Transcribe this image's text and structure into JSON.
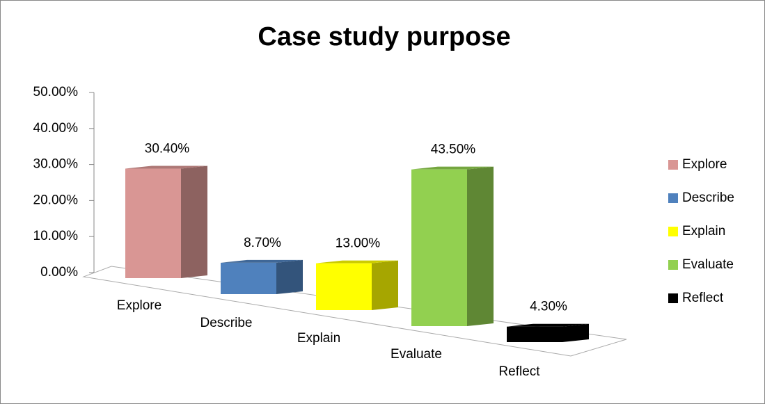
{
  "chart_data": {
    "type": "bar3d",
    "title": "Case study purpose",
    "categories": [
      "Explore",
      "Describe",
      "Explain",
      "Evaluate",
      "Reflect"
    ],
    "values": [
      30.4,
      8.7,
      13.0,
      43.5,
      4.3
    ],
    "value_labels": [
      "30.40%",
      "8.70%",
      "13.00%",
      "43.50%",
      "4.30%"
    ],
    "colors": [
      "#d99694",
      "#4f81bd",
      "#ffff00",
      "#92d050",
      "#000000"
    ],
    "ylim": [
      0,
      50
    ],
    "yticks": [
      {
        "value": 0,
        "label": "0.00%"
      },
      {
        "value": 10,
        "label": "10.00%"
      },
      {
        "value": 20,
        "label": "20.00%"
      },
      {
        "value": 30,
        "label": "30.00%"
      },
      {
        "value": 40,
        "label": "40.00%"
      },
      {
        "value": 50,
        "label": "50.00%"
      }
    ],
    "legend": "right"
  }
}
